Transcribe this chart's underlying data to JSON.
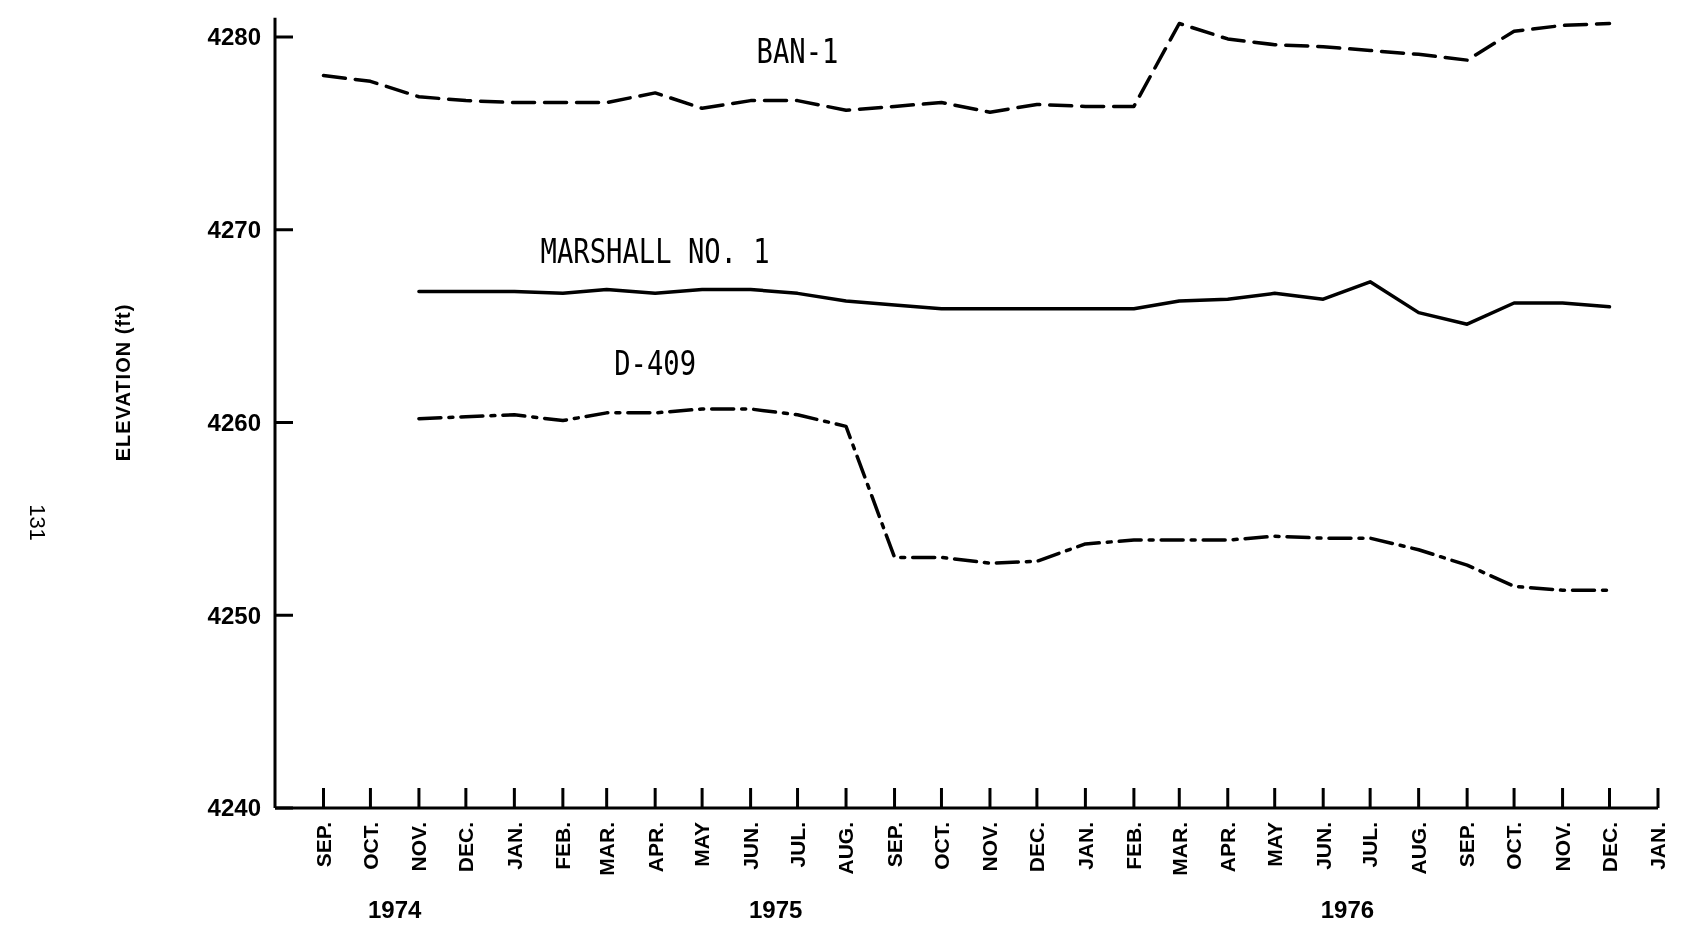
{
  "chart_data": {
    "type": "line",
    "ylabel": "ELEVATION (ft)",
    "x": [
      "1974-09",
      "1974-10",
      "1974-11",
      "1974-12",
      "1975-01",
      "1975-02",
      "1975-03",
      "1975-04",
      "1975-05",
      "1975-06",
      "1975-07",
      "1975-08",
      "1975-09",
      "1975-10",
      "1975-11",
      "1975-12",
      "1976-01",
      "1976-02",
      "1976-03",
      "1976-04",
      "1976-05",
      "1976-06",
      "1976-07",
      "1976-08",
      "1976-09",
      "1976-10",
      "1976-11",
      "1976-12"
    ],
    "series": [
      {
        "name": "BAN-1",
        "color": "#000000",
        "line_style": "dashed",
        "values": [
          4278.0,
          4277.7,
          4276.9,
          4276.7,
          4276.6,
          4276.6,
          4276.6,
          4277.1,
          4276.3,
          4276.7,
          4276.7,
          4276.2,
          4276.4,
          4276.6,
          4276.1,
          4276.5,
          4276.4,
          4276.4,
          4280.7,
          4279.9,
          4279.6,
          4279.5,
          4279.3,
          4279.1,
          4278.8,
          4280.3,
          4280.6,
          4280.7
        ]
      },
      {
        "name": "MARSHALL NO. 1",
        "color": "#000000",
        "line_style": "solid",
        "values": [
          null,
          null,
          4266.8,
          4266.8,
          4266.8,
          4266.7,
          4266.9,
          4266.7,
          4266.9,
          4266.9,
          4266.7,
          4266.3,
          4266.1,
          4265.9,
          4265.9,
          4265.9,
          4265.9,
          4265.9,
          4266.3,
          4266.4,
          4266.7,
          4266.4,
          4267.3,
          4265.7,
          4265.1,
          4266.2,
          4266.2,
          4266.0
        ]
      },
      {
        "name": "D-409",
        "color": "#000000",
        "line_style": "dashdot",
        "values": [
          null,
          null,
          4260.2,
          4260.3,
          4260.4,
          4260.1,
          4260.5,
          4260.5,
          4260.7,
          4260.7,
          4260.4,
          4259.8,
          4253.0,
          4253.0,
          4252.7,
          4252.8,
          4253.7,
          4253.9,
          4253.9,
          4253.9,
          4254.1,
          4254.0,
          4254.0,
          4253.4,
          4252.6,
          4251.5,
          4251.3,
          4251.3
        ]
      }
    ],
    "xlim": [
      "1974-08",
      "1977-01"
    ],
    "xticks": [
      {
        "value": "1974-09",
        "label": "SEP."
      },
      {
        "value": "1974-10",
        "label": "OCT."
      },
      {
        "value": "1974-11",
        "label": "NOV."
      },
      {
        "value": "1974-12",
        "label": "DEC."
      },
      {
        "value": "1975-01",
        "label": "JAN."
      },
      {
        "value": "1975-02",
        "label": "FEB."
      },
      {
        "value": "1975-03",
        "label": "MAR."
      },
      {
        "value": "1975-04",
        "label": "APR."
      },
      {
        "value": "1975-05",
        "label": "MAY"
      },
      {
        "value": "1975-06",
        "label": "JUN."
      },
      {
        "value": "1975-07",
        "label": "JUL."
      },
      {
        "value": "1975-08",
        "label": "AUG."
      },
      {
        "value": "1975-09",
        "label": "SEP."
      },
      {
        "value": "1975-10",
        "label": "OCT."
      },
      {
        "value": "1975-11",
        "label": "NOV."
      },
      {
        "value": "1975-12",
        "label": "DEC."
      },
      {
        "value": "1976-01",
        "label": "JAN."
      },
      {
        "value": "1976-02",
        "label": "FEB."
      },
      {
        "value": "1976-03",
        "label": "MAR."
      },
      {
        "value": "1976-04",
        "label": "APR."
      },
      {
        "value": "1976-05",
        "label": "MAY"
      },
      {
        "value": "1976-06",
        "label": "JUN."
      },
      {
        "value": "1976-07",
        "label": "JUL."
      },
      {
        "value": "1976-08",
        "label": "AUG."
      },
      {
        "value": "1976-09",
        "label": "SEP."
      },
      {
        "value": "1976-10",
        "label": "OCT."
      },
      {
        "value": "1976-11",
        "label": "NOV."
      },
      {
        "value": "1976-12",
        "label": "DEC."
      },
      {
        "value": "1977-01",
        "label": "JAN."
      }
    ],
    "ylim": [
      4240,
      4281
    ],
    "yticks": [
      4240,
      4250,
      4260,
      4270,
      4280
    ],
    "grid": false,
    "annotations": [
      "1974",
      "1975",
      "1976",
      "131"
    ]
  }
}
